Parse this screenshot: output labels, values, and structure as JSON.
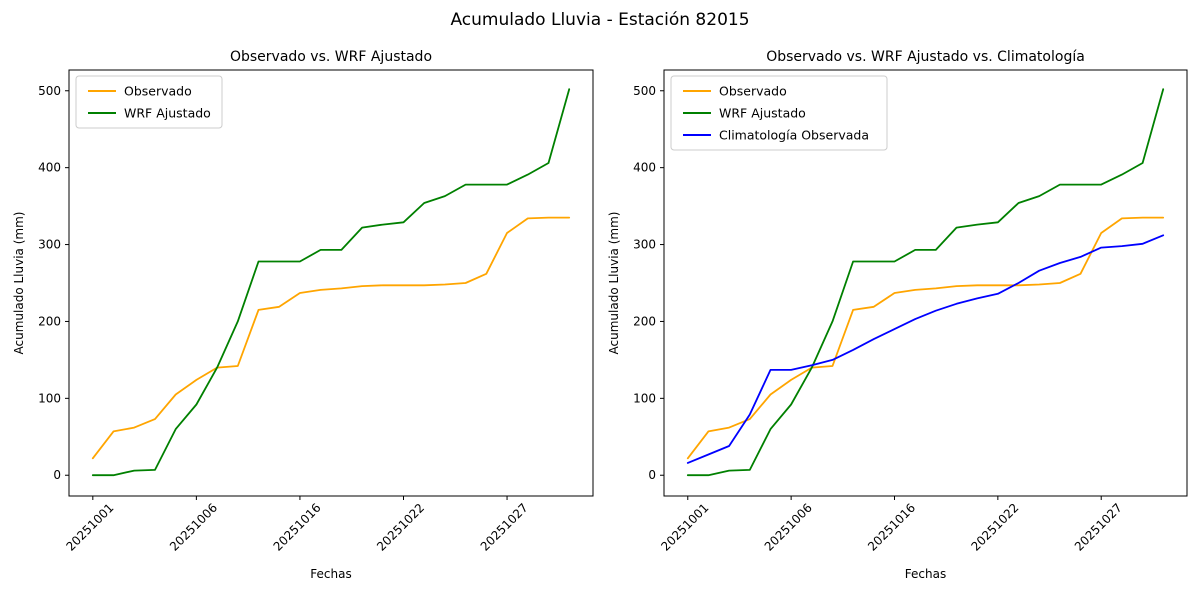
{
  "figure": {
    "title": "Acumulado Lluvia - Estación 82015",
    "background": "#ffffff"
  },
  "chart_data": [
    {
      "type": "line",
      "title": "Observado vs. WRF Ajustado",
      "xlabel": "Fechas",
      "ylabel": "Acumulado Lluvia (mm)",
      "grid": false,
      "legend_position": "upper-left",
      "ylim": [
        0,
        500
      ],
      "yticks": [
        0,
        100,
        200,
        300,
        400,
        500
      ],
      "x": [
        "20251001",
        "20251002",
        "20251003",
        "20251004",
        "20251005",
        "20251006",
        "20251008",
        "20251010",
        "20251012",
        "20251014",
        "20251016",
        "20251017",
        "20251018",
        "20251019",
        "20251021",
        "20251022",
        "20251023",
        "20251024",
        "20251025",
        "20251026",
        "20251027",
        "20251028",
        "20251029",
        "20251030"
      ],
      "xtick_indices": [
        0,
        5,
        10,
        15,
        20
      ],
      "xtick_labels": [
        "20251001",
        "20251006",
        "20251016",
        "20251022",
        "20251027"
      ],
      "series": [
        {
          "name": "Observado",
          "color": "#FFA500",
          "values": [
            22,
            57,
            62,
            73,
            105,
            124,
            140,
            142,
            215,
            219,
            237,
            241,
            243,
            246,
            247,
            247,
            247,
            248,
            250,
            262,
            315,
            334,
            335,
            335
          ]
        },
        {
          "name": "WRF Ajustado",
          "color": "#008000",
          "values": [
            0,
            0,
            6,
            7,
            60,
            92,
            140,
            200,
            278,
            278,
            278,
            293,
            293,
            322,
            326,
            329,
            354,
            363,
            378,
            378,
            378,
            391,
            406,
            502
          ]
        }
      ]
    },
    {
      "type": "line",
      "title": "Observado vs. WRF Ajustado vs. Climatología",
      "xlabel": "Fechas",
      "ylabel": "Acumulado Lluvia (mm)",
      "grid": false,
      "legend_position": "upper-left",
      "ylim": [
        0,
        500
      ],
      "yticks": [
        0,
        100,
        200,
        300,
        400,
        500
      ],
      "x": [
        "20251001",
        "20251002",
        "20251003",
        "20251004",
        "20251005",
        "20251006",
        "20251008",
        "20251010",
        "20251012",
        "20251014",
        "20251016",
        "20251017",
        "20251018",
        "20251019",
        "20251021",
        "20251022",
        "20251023",
        "20251024",
        "20251025",
        "20251026",
        "20251027",
        "20251028",
        "20251029",
        "20251030"
      ],
      "xtick_indices": [
        0,
        5,
        10,
        15,
        20
      ],
      "xtick_labels": [
        "20251001",
        "20251006",
        "20251016",
        "20251022",
        "20251027"
      ],
      "series": [
        {
          "name": "Observado",
          "color": "#FFA500",
          "values": [
            22,
            57,
            62,
            73,
            105,
            124,
            140,
            142,
            215,
            219,
            237,
            241,
            243,
            246,
            247,
            247,
            247,
            248,
            250,
            262,
            315,
            334,
            335,
            335
          ]
        },
        {
          "name": "WRF Ajustado",
          "color": "#008000",
          "values": [
            0,
            0,
            6,
            7,
            60,
            92,
            140,
            200,
            278,
            278,
            278,
            293,
            293,
            322,
            326,
            329,
            354,
            363,
            378,
            378,
            378,
            391,
            406,
            502
          ]
        },
        {
          "name": "Climatología Observada",
          "color": "#0000FF",
          "values": [
            16,
            27,
            38,
            79,
            137,
            137,
            143,
            150,
            163,
            177,
            190,
            203,
            214,
            223,
            230,
            236,
            250,
            266,
            276,
            284,
            296,
            298,
            301,
            312
          ]
        }
      ]
    }
  ]
}
